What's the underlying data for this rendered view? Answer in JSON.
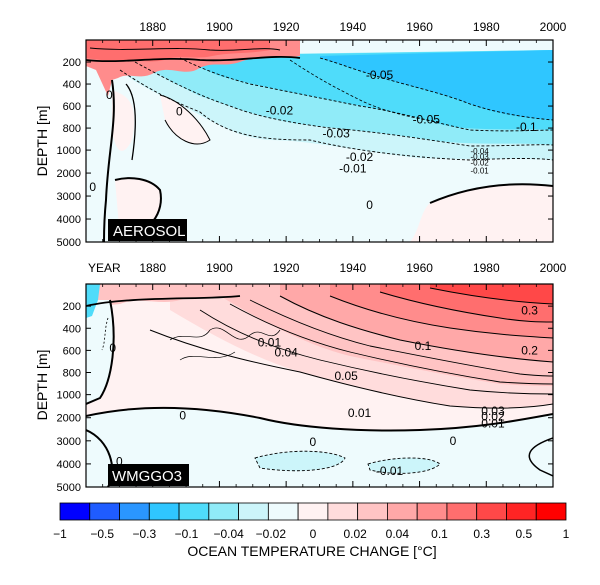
{
  "chart_data": [
    {
      "type": "heatmap",
      "panel_label": "AEROSOL",
      "xlabel": "",
      "ylabel": "DEPTH [m]",
      "xlim": [
        1860,
        2000
      ],
      "x_ticks": [
        1880,
        1900,
        1920,
        1940,
        1960,
        1980,
        2000
      ],
      "y_ticks": [
        200,
        400,
        600,
        800,
        1000,
        2000,
        3000,
        4000,
        5000
      ],
      "contour_labels": [
        {
          "text": "0",
          "x": 1867,
          "depth": 500
        },
        {
          "text": "0",
          "x": 1862,
          "depth": 2600
        },
        {
          "text": "0",
          "x": 1888,
          "depth": 650
        },
        {
          "text": "0",
          "x": 1945,
          "depth": 3400
        },
        {
          "text": "-0.02",
          "x": 1918,
          "depth": 640
        },
        {
          "text": "-0.03",
          "x": 1935,
          "depth": 850
        },
        {
          "text": "-0.05",
          "x": 1962,
          "depth": 720
        },
        {
          "text": "-0.1",
          "x": 1992,
          "depth": 790
        },
        {
          "text": "-0.02",
          "x": 1942,
          "depth": 1300
        },
        {
          "text": "-0.01",
          "x": 1940,
          "depth": 1800
        },
        {
          "text": "-0.05",
          "x": 1948,
          "depth": 320
        },
        {
          "text": "-0.04",
          "x": 1978,
          "depth": 1000
        },
        {
          "text": "-0.03",
          "x": 1978,
          "depth": 1230
        },
        {
          "text": "-0.02",
          "x": 1978,
          "depth": 1500
        },
        {
          "text": "-0.01",
          "x": 1978,
          "depth": 1850
        }
      ]
    },
    {
      "type": "heatmap",
      "panel_label": "WMGGO3",
      "xlabel": "YEAR",
      "ylabel": "DEPTH [m]",
      "xlim": [
        1860,
        2000
      ],
      "x_ticks": [
        1880,
        1900,
        1920,
        1940,
        1960,
        1980,
        2000
      ],
      "y_ticks": [
        200,
        400,
        600,
        800,
        1000,
        2000,
        3000,
        4000,
        5000
      ],
      "contour_labels": [
        {
          "text": "0.3",
          "x": 1993,
          "depth": 240
        },
        {
          "text": "0.2",
          "x": 1993,
          "depth": 600
        },
        {
          "text": "0.1",
          "x": 1961,
          "depth": 560
        },
        {
          "text": "0.05",
          "x": 1938,
          "depth": 830
        },
        {
          "text": "0.01",
          "x": 1942,
          "depth": 1800
        },
        {
          "text": "0.03",
          "x": 1982,
          "depth": 1700
        },
        {
          "text": "0.02",
          "x": 1982,
          "depth": 1950
        },
        {
          "text": "0.01",
          "x": 1982,
          "depth": 2250
        },
        {
          "text": "0.04",
          "x": 1920,
          "depth": 620
        },
        {
          "text": "0.01",
          "x": 1915,
          "depth": 530
        },
        {
          "text": "0",
          "x": 1928,
          "depth": 3050
        },
        {
          "text": "0",
          "x": 1870,
          "depth": 3900
        },
        {
          "text": "0",
          "x": 1889,
          "depth": 1900
        },
        {
          "text": "0",
          "x": 1868,
          "depth": 580
        },
        {
          "text": "0",
          "x": 1970,
          "depth": 3000
        },
        {
          "text": "-0.01",
          "x": 1951,
          "depth": 4300
        }
      ]
    }
  ],
  "colorbar": {
    "title": "OCEAN TEMPERATURE CHANGE [°C]",
    "labels": [
      "−1",
      "−0.5",
      "−0.3",
      "−0.1",
      "−0.04",
      "−0.02",
      "0",
      "0.02",
      "0.04",
      "0.1",
      "0.3",
      "0.5",
      "1"
    ],
    "colors": [
      "#0000ff",
      "#1f5cff",
      "#2a96ff",
      "#2fc6ff",
      "#4fdcfa",
      "#90ebf8",
      "#ccf5fa",
      "#eefbfd",
      "#fff2f2",
      "#ffdcdc",
      "#ffc4c4",
      "#ffa8a8",
      "#ff8c8c",
      "#ff6e6e",
      "#ff4848",
      "#ff2424",
      "#ff0000"
    ]
  }
}
